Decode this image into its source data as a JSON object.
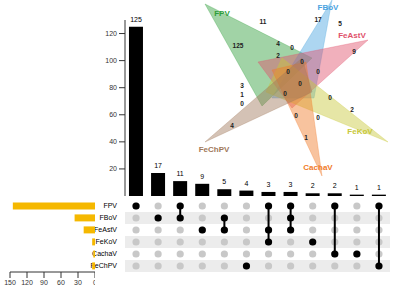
{
  "chart_data": [
    {
      "type": "bar",
      "categories": [
        null,
        null,
        null,
        null,
        null,
        null,
        null,
        null,
        null,
        null,
        null,
        null
      ],
      "values": [
        125,
        17,
        11,
        9,
        5,
        4,
        3,
        3,
        2,
        2,
        1,
        1
      ],
      "color": "#000000",
      "ylim": [
        0,
        130
      ],
      "yticks": [
        0,
        20,
        40,
        60,
        80,
        100,
        120
      ],
      "data_labels": true,
      "tick_labels": "y"
    },
    {
      "type": "matrix",
      "categories": [
        "FPV",
        "FBoV",
        "FeAstV",
        "FeKoV",
        "CachaV",
        "FeChPV"
      ],
      "color": "#000000",
      "memberships": [
        [
          "FPV"
        ],
        [
          "FBoV"
        ],
        [
          "FPV",
          "FBoV"
        ],
        [
          "FeAstV"
        ],
        [
          "FBoV",
          "FeAstV"
        ],
        [
          "FeChPV"
        ],
        [
          "FPV",
          "FeAstV",
          "FeKoV"
        ],
        [
          "FPV",
          "FBoV",
          "FeAstV"
        ],
        [
          "FeKoV"
        ],
        [
          "FPV",
          "CachaV"
        ],
        [
          "CachaV"
        ],
        [
          "FPV",
          "FeChPV"
        ]
      ],
      "tick_labels": "y"
    },
    {
      "type": "bar",
      "orientation": "horizontal",
      "categories": [
        "FPV",
        "FBoV",
        "FeAstV",
        "FeKoV",
        "CachaV",
        "FeChPV"
      ],
      "values": [
        145,
        36,
        20,
        5,
        3,
        5
      ],
      "color": "#f5b800",
      "xlim": [
        150,
        0
      ],
      "xticks": [
        150,
        120,
        90,
        60,
        30,
        0
      ],
      "tick_labels": "x"
    },
    {
      "type": "venn",
      "sets": [
        {
          "name": "FPV",
          "color": "#2e9e3a"
        },
        {
          "name": "FBoV",
          "color": "#4aa3df"
        },
        {
          "name": "FeAstV",
          "color": "#e0506a"
        },
        {
          "name": "FeKoV",
          "color": "#c8c83a"
        },
        {
          "name": "CachaV",
          "color": "#f07a28"
        },
        {
          "name": "FeChPV",
          "color": "#a0785a"
        }
      ],
      "values": [
        11,
        17,
        5,
        125,
        4,
        2,
        0,
        0,
        0,
        9,
        3,
        1,
        0,
        0,
        0,
        0,
        2,
        0,
        4,
        1,
        0,
        0
      ]
    }
  ]
}
